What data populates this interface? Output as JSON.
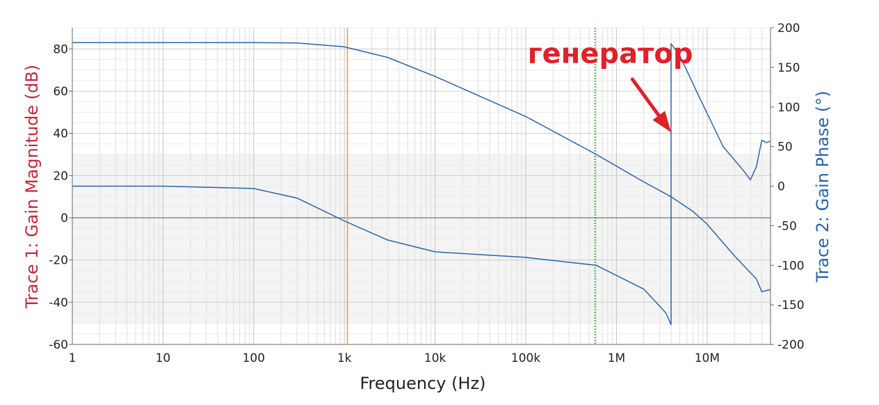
{
  "chart_data": {
    "type": "line",
    "xlabel": "Frequency (Hz)",
    "xscale": "log",
    "xlim": [
      1,
      50000000
    ],
    "x_ticks": [
      1,
      10,
      100,
      1000,
      10000,
      100000,
      1000000,
      10000000
    ],
    "x_tick_labels": [
      "1",
      "10",
      "100",
      "1k",
      "10k",
      "100k",
      "1M",
      "10M"
    ],
    "y_left": {
      "label": "Trace 1: Gain Magnitude (dB)",
      "lim": [
        -60,
        90
      ],
      "ticks": [
        -60,
        -40,
        -20,
        0,
        20,
        40,
        60,
        80
      ],
      "tick_labels": [
        "-60",
        "-40",
        "-20",
        "0",
        "20",
        "40",
        "60",
        "80"
      ],
      "color": "#c0283c"
    },
    "y_right": {
      "label": "Trace 2: Gain Phase (°)",
      "lim": [
        -200,
        200
      ],
      "ticks": [
        -200,
        -150,
        -100,
        -50,
        0,
        50,
        100,
        150,
        200
      ],
      "tick_labels": [
        "-200",
        "-150",
        "-100",
        "-50",
        "0",
        "50",
        "100",
        "150",
        "200"
      ],
      "color": "#2a64a8"
    },
    "cursors": [
      {
        "x": 1080,
        "color": "#f0a030"
      },
      {
        "x": 580000,
        "color": "#2e9a2e"
      }
    ],
    "series": [
      {
        "name": "Trace 1: Gain Magnitude",
        "axis": "left",
        "color": "#2a64a8",
        "points": [
          [
            1,
            83
          ],
          [
            10,
            83
          ],
          [
            100,
            83
          ],
          [
            300,
            82.8
          ],
          [
            1000,
            81
          ],
          [
            3000,
            76
          ],
          [
            10000,
            67
          ],
          [
            100000,
            48
          ],
          [
            600000,
            30
          ],
          [
            2000000,
            17
          ],
          [
            4000000,
            10
          ],
          [
            7000000,
            3
          ],
          [
            10000000,
            -3
          ],
          [
            20000000,
            -18
          ],
          [
            35000000,
            -29
          ],
          [
            40000000,
            -35
          ],
          [
            50000000,
            -34
          ]
        ]
      },
      {
        "name": "Trace 2: Gain Phase",
        "axis": "right",
        "color": "#2a64a8",
        "points": [
          [
            1,
            0
          ],
          [
            10,
            0
          ],
          [
            100,
            -3
          ],
          [
            300,
            -15
          ],
          [
            1000,
            -44
          ],
          [
            3000,
            -68
          ],
          [
            10000,
            -83
          ],
          [
            100000,
            -90
          ],
          [
            600000,
            -100
          ],
          [
            2000000,
            -130
          ],
          [
            3500000,
            -160
          ],
          [
            4000000,
            -175
          ],
          [
            4000001,
            180
          ],
          [
            5000000,
            165
          ],
          [
            8000000,
            115
          ],
          [
            15000000,
            50
          ],
          [
            25000000,
            20
          ],
          [
            30000000,
            8
          ],
          [
            35000000,
            25
          ],
          [
            40000000,
            58
          ],
          [
            45000000,
            55
          ],
          [
            50000000,
            57
          ]
        ]
      }
    ],
    "annotation": {
      "text": "генератор",
      "color": "#e0202a",
      "arrow_from": [
        1500000,
        135
      ],
      "arrow_to": [
        4000000,
        68
      ],
      "text_anchor": [
        4500000,
        168
      ]
    }
  }
}
